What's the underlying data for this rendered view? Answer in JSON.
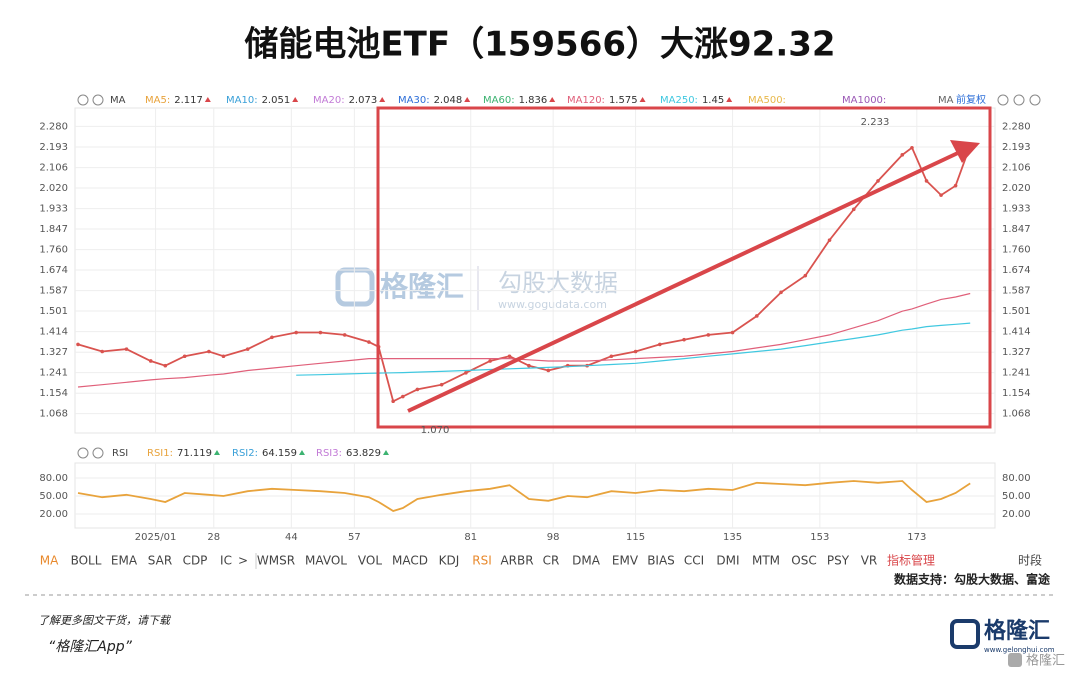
{
  "header": {
    "title": "储能电池ETF（159566）大涨92.32"
  },
  "chart_data": [
    {
      "type": "line",
      "indicator_label": "MA",
      "indicators": [
        {
          "name": "MA5:",
          "value": 2.117,
          "color": "#e8a33c"
        },
        {
          "name": "MA10:",
          "value": 2.051,
          "color": "#3aa0d8"
        },
        {
          "name": "MA20:",
          "value": 2.073,
          "color": "#c27bd6"
        },
        {
          "name": "MA30:",
          "value": 2.048,
          "color": "#2e6fd8"
        },
        {
          "name": "MA60:",
          "value": 1.836,
          "color": "#3cb371"
        },
        {
          "name": "MA120:",
          "value": 1.575,
          "color": "#e0607a"
        },
        {
          "name": "MA250:",
          "value": 1.45,
          "color": "#40c8e0"
        },
        {
          "name": "MA500:",
          "color": "#e8b84a"
        },
        {
          "name": "MA1000:",
          "color": "#9b59b6"
        }
      ],
      "adjust_labels": [
        "MA",
        "前复权"
      ],
      "annotations": [
        "2.233",
        "1.070"
      ],
      "x": [
        0,
        5,
        10,
        15,
        18,
        22,
        27,
        30,
        35,
        40,
        45,
        50,
        55,
        60,
        62,
        65,
        67,
        70,
        75,
        80,
        85,
        89,
        93,
        97,
        101,
        105,
        110,
        115,
        120,
        125,
        130,
        135,
        140,
        145,
        150,
        155,
        160,
        165,
        170,
        172,
        175,
        178,
        181,
        184
      ],
      "xlim": [
        0,
        185
      ],
      "xticks": [
        {
          "value": 16,
          "label": "2025/01"
        },
        28,
        44,
        57,
        81,
        98,
        115,
        135,
        153,
        173
      ],
      "series": [
        {
          "name": "price",
          "color": "#d9534f",
          "values": [
            1.36,
            1.33,
            1.34,
            1.29,
            1.27,
            1.31,
            1.33,
            1.31,
            1.34,
            1.39,
            1.41,
            1.41,
            1.4,
            1.37,
            1.35,
            1.12,
            1.14,
            1.17,
            1.19,
            1.24,
            1.29,
            1.31,
            1.27,
            1.25,
            1.27,
            1.27,
            1.31,
            1.33,
            1.36,
            1.38,
            1.4,
            1.41,
            1.48,
            1.58,
            1.65,
            1.8,
            1.93,
            2.05,
            2.16,
            2.19,
            2.05,
            1.99,
            2.03,
            2.2
          ]
        },
        {
          "name": "MA120",
          "color": "#e0607a",
          "values": [
            1.18,
            1.19,
            1.2,
            1.21,
            1.215,
            1.22,
            1.23,
            1.235,
            1.25,
            1.26,
            1.27,
            1.28,
            1.29,
            1.3,
            1.3,
            1.3,
            1.3,
            1.3,
            1.3,
            1.3,
            1.3,
            1.3,
            1.295,
            1.29,
            1.29,
            1.29,
            1.295,
            1.3,
            1.305,
            1.31,
            1.32,
            1.33,
            1.345,
            1.36,
            1.38,
            1.4,
            1.43,
            1.46,
            1.5,
            1.51,
            1.53,
            1.55,
            1.56,
            1.575
          ]
        },
        {
          "name": "MA250",
          "color": "#40c8e0",
          "values": [
            null,
            null,
            null,
            null,
            null,
            null,
            null,
            null,
            null,
            null,
            1.23,
            1.232,
            1.235,
            1.238,
            1.239,
            1.24,
            1.241,
            1.243,
            1.246,
            1.25,
            1.254,
            1.257,
            1.26,
            1.263,
            1.266,
            1.27,
            1.275,
            1.28,
            1.29,
            1.3,
            1.31,
            1.32,
            1.33,
            1.34,
            1.355,
            1.37,
            1.385,
            1.4,
            1.42,
            1.425,
            1.435,
            1.44,
            1.445,
            1.45
          ]
        }
      ],
      "ylim": [
        1.024,
        2.324
      ],
      "yticks": [
        {
          "value": 2.28,
          "label": "2.280"
        },
        2.193,
        2.106,
        {
          "value": 2.02,
          "label": "2.020"
        },
        1.933,
        1.847,
        {
          "value": 1.76,
          "label": "1.760"
        },
        1.674,
        1.587,
        1.501,
        1.414,
        1.327,
        1.241,
        1.154,
        1.068
      ],
      "grid": true
    },
    {
      "type": "line",
      "indicator_label": "RSI",
      "indicators": [
        {
          "name": "RSI1:",
          "value": 71.119,
          "color": "#e8a33c"
        },
        {
          "name": "RSI2:",
          "value": 64.159,
          "color": "#3aa0d8"
        },
        {
          "name": "RSI3:",
          "value": 63.829,
          "color": "#c27bd6"
        }
      ],
      "x": [
        0,
        5,
        10,
        15,
        18,
        22,
        27,
        30,
        35,
        40,
        45,
        50,
        55,
        60,
        62,
        65,
        67,
        70,
        75,
        80,
        85,
        89,
        93,
        97,
        101,
        105,
        110,
        115,
        120,
        125,
        130,
        135,
        140,
        145,
        150,
        155,
        160,
        165,
        170,
        172,
        175,
        178,
        181,
        184
      ],
      "xlim": [
        0,
        185
      ],
      "series": [
        {
          "name": "RSI1",
          "color": "#e8a33c",
          "values": [
            55,
            48,
            52,
            45,
            40,
            55,
            52,
            50,
            58,
            62,
            60,
            58,
            55,
            48,
            40,
            25,
            30,
            45,
            52,
            58,
            62,
            68,
            45,
            42,
            50,
            48,
            58,
            55,
            60,
            58,
            62,
            60,
            72,
            70,
            68,
            72,
            75,
            72,
            75,
            60,
            40,
            45,
            55,
            71
          ]
        }
      ],
      "ylim": [
        0,
        100
      ],
      "yticks": [
        {
          "value": 80,
          "label": "80.00"
        },
        {
          "value": 50,
          "label": "50.00"
        },
        {
          "value": 20,
          "label": "20.00"
        }
      ],
      "grid": true
    }
  ],
  "toolbar": [
    {
      "label": "MA",
      "color": "#e8892c"
    },
    {
      "label": "BOLL"
    },
    {
      "label": "EMA"
    },
    {
      "label": "SAR"
    },
    {
      "label": "CDP"
    },
    {
      "label": "IC"
    },
    {
      "label": ">"
    },
    {
      "label": "WMSR"
    },
    {
      "label": "MAVOL"
    },
    {
      "label": "VOL"
    },
    {
      "label": "MACD"
    },
    {
      "label": "KDJ"
    },
    {
      "label": "RSI",
      "color": "#e8892c"
    },
    {
      "label": "ARBR"
    },
    {
      "label": "CR"
    },
    {
      "label": "DMA"
    },
    {
      "label": "EMV"
    },
    {
      "label": "BIAS"
    },
    {
      "label": "CCI"
    },
    {
      "label": "DMI"
    },
    {
      "label": "MTM"
    },
    {
      "label": "OSC"
    },
    {
      "label": "PSY"
    },
    {
      "label": "VR"
    },
    {
      "label": "指标管理",
      "color": "#d9464a"
    },
    {
      "label": "时段"
    }
  ],
  "source": "数据支持：勾股大数据、富途",
  "watermark": {
    "brand": "格隆汇",
    "partner": "勾股大数据",
    "url": "www.gogudata.com"
  },
  "footer": {
    "line1": "了解更多图文干货，请下载",
    "line2": "“格隆汇App”",
    "logo": "格隆汇",
    "logo_url": "www.gelonghui.com",
    "corner": "格隆汇"
  }
}
